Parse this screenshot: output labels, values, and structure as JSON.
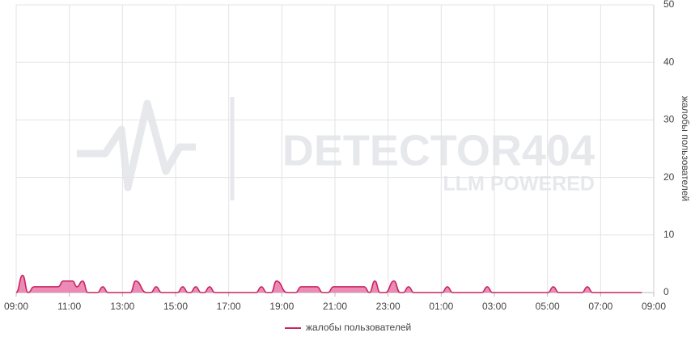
{
  "chart_data": {
    "type": "area",
    "watermark": {
      "title": "DETECTOR404",
      "subtitle": "LLM POWERED"
    },
    "y_label": "жалобы пользователей",
    "series": [
      {
        "name": "жалобы пользователей",
        "color": "#c9245f",
        "fill": "#e877a9",
        "x": [
          9.0,
          9.24,
          9.45,
          9.67,
          10.58,
          10.77,
          11.13,
          11.28,
          11.5,
          11.7,
          12.06,
          12.26,
          12.46,
          13.3,
          13.5,
          13.9,
          14.07,
          14.27,
          14.47,
          15.07,
          15.27,
          15.47,
          15.56,
          15.76,
          15.96,
          16.08,
          16.28,
          16.48,
          18.03,
          18.23,
          18.43,
          18.6,
          18.8,
          19.2,
          19.52,
          19.72,
          20.33,
          20.53,
          20.74,
          20.94,
          22.1,
          22.3,
          22.5,
          22.7,
          22.9,
          23.22,
          23.45,
          23.57,
          23.77,
          23.97,
          25.03,
          25.23,
          25.43,
          26.53,
          26.73,
          26.93,
          29.02,
          29.22,
          29.42,
          30.3,
          30.5,
          30.7,
          32.55
        ],
        "values": [
          0,
          3,
          0,
          1,
          1,
          2,
          2,
          1,
          2,
          0,
          0,
          1,
          0,
          0,
          2,
          0,
          0,
          1,
          0,
          0,
          1,
          0,
          0,
          1,
          0,
          0,
          1,
          0,
          0,
          1,
          0,
          0,
          2,
          0,
          0,
          1,
          1,
          0,
          0,
          1,
          1,
          0,
          2,
          0,
          0,
          2,
          0,
          0,
          1,
          0,
          0,
          1,
          0,
          0,
          1,
          0,
          0,
          1,
          0,
          0,
          1,
          0,
          0
        ]
      }
    ],
    "xlim": [
      9,
      33
    ],
    "xticks": [
      {
        "value": 9,
        "label": "09:00"
      },
      {
        "value": 11,
        "label": "11:00"
      },
      {
        "value": 13,
        "label": "13:00"
      },
      {
        "value": 15,
        "label": "15:00"
      },
      {
        "value": 17,
        "label": "17:00"
      },
      {
        "value": 19,
        "label": "19:00"
      },
      {
        "value": 21,
        "label": "21:00"
      },
      {
        "value": 23,
        "label": "23:00"
      },
      {
        "value": 25,
        "label": "01:00"
      },
      {
        "value": 27,
        "label": "03:00"
      },
      {
        "value": 29,
        "label": "05:00"
      },
      {
        "value": 31,
        "label": "07:00"
      },
      {
        "value": 33,
        "label": "09:00"
      }
    ],
    "ylim": [
      0,
      50
    ],
    "yticks": [
      0,
      10,
      20,
      30,
      40,
      50
    ],
    "grid": true,
    "legend": "bottom"
  }
}
